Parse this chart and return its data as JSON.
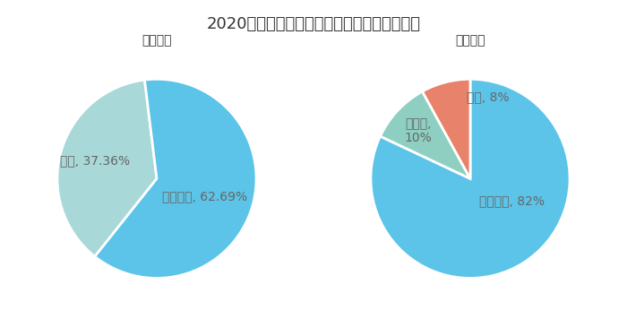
{
  "title": "2020年中国石油与中国石化营业区域分布对比",
  "title_fontsize": 13,
  "left_title": "中国石油",
  "right_title": "中国石化",
  "subtitle_fontsize": 11,
  "pie1": {
    "labels": [
      "其他",
      "中国大陆"
    ],
    "values": [
      37.36,
      62.64
    ],
    "colors": [
      "#a8d8d8",
      "#5bc4e8"
    ],
    "startangle": 97,
    "counterclock": true
  },
  "pie2": {
    "labels": [
      "中国大陆",
      "新加坡",
      "其他"
    ],
    "values": [
      82,
      10,
      8
    ],
    "colors": [
      "#5bc4e8",
      "#8ecfc2",
      "#e8826a"
    ],
    "startangle": 90,
    "counterclock": false
  },
  "background_color": "#ffffff",
  "text_color": "#666666",
  "label_fontsize": 9
}
